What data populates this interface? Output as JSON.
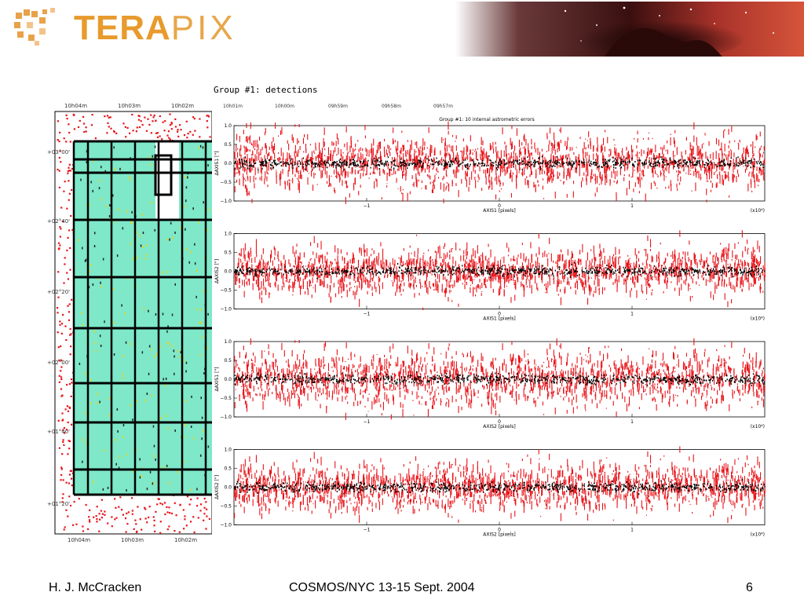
{
  "header": {
    "logo_text_bold": "TERA",
    "logo_text_light": "PIX"
  },
  "slide": {
    "group_title": "Group #1: detections"
  },
  "sky_map": {
    "ra_ticks_top": [
      "10h04m",
      "10h03m",
      "10h02m"
    ],
    "ra_ticks_bottom": [
      "10h04m",
      "10h03m",
      "10h02m"
    ],
    "dec_ticks": [
      "+03°00'",
      "+02°40'",
      "+02°20'",
      "+02°00'",
      "+01°40'",
      "+01°20'"
    ],
    "top_ra_ticks_right": [
      "10h01m",
      "10h00m",
      "09h59m",
      "09h58m",
      "09h57m"
    ],
    "colors": {
      "detections": "#e8141a",
      "fields": "#7ee8c8",
      "outline": "#000000",
      "markers": "#e8d21a"
    }
  },
  "chart_data": [
    {
      "type": "scatter",
      "title": "Group #1: 10 internal astrometric errors",
      "xlabel": "AXIS1 [pixels]",
      "ylabel": "ΔAXIS1 [\"]",
      "x_multiplier": "(x10⁴)",
      "xlim": [
        -2,
        2
      ],
      "ylim": [
        -1.0,
        1.0
      ],
      "x_ticks": [
        "−1",
        "0",
        "1"
      ],
      "y_ticks": [
        "1.0",
        "0.5",
        "0.0",
        "−0.5",
        "−1.0"
      ],
      "series": [
        {
          "color": "#e8141a",
          "spread": 0.35
        },
        {
          "color": "#000000",
          "spread": 0.06
        }
      ]
    },
    {
      "type": "scatter",
      "title": "",
      "xlabel": "AXIS1 [pixels]",
      "ylabel": "ΔAXIS2 [\"]",
      "x_multiplier": "(x10⁴)",
      "xlim": [
        -2,
        2
      ],
      "ylim": [
        -1.0,
        1.0
      ],
      "x_ticks": [
        "−1",
        "0",
        "1"
      ],
      "y_ticks": [
        "1.0",
        "0.5",
        "0.0",
        "−0.5",
        "−1.0"
      ],
      "series": [
        {
          "color": "#e8141a",
          "spread": 0.3
        },
        {
          "color": "#000000",
          "spread": 0.06
        }
      ]
    },
    {
      "type": "scatter",
      "title": "",
      "xlabel": "AXIS2 [pixels]",
      "ylabel": "ΔAXIS1 [\"]",
      "x_multiplier": "(x10⁴)",
      "xlim": [
        -2,
        2
      ],
      "ylim": [
        -1.0,
        1.0
      ],
      "x_ticks": [
        "−1",
        "0",
        "1"
      ],
      "y_ticks": [
        "1.0",
        "0.5",
        "0.0",
        "−0.5",
        "−1.0"
      ],
      "series": [
        {
          "color": "#e8141a",
          "spread": 0.35
        },
        {
          "color": "#000000",
          "spread": 0.06
        }
      ]
    },
    {
      "type": "scatter",
      "title": "",
      "xlabel": "AXIS2 [pixels]",
      "ylabel": "ΔAXIS2 [\"]",
      "x_multiplier": "(x10⁴)",
      "xlim": [
        -2,
        2
      ],
      "ylim": [
        -1.0,
        1.0
      ],
      "x_ticks": [
        "−1",
        "0",
        "1"
      ],
      "y_ticks": [
        "1.0",
        "0.5",
        "0.0",
        "−0.5",
        "−1.0"
      ],
      "series": [
        {
          "color": "#e8141a",
          "spread": 0.3
        },
        {
          "color": "#000000",
          "spread": 0.06
        }
      ]
    }
  ],
  "footer": {
    "author": "H. J. McCracken",
    "event": "COSMOS/NYC 13-15 Sept. 2004",
    "page_number": "6"
  }
}
